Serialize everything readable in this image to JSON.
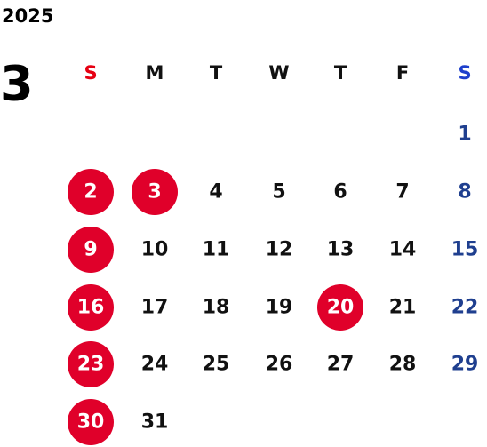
{
  "year": "2025",
  "month": "3",
  "weekdays": [
    "S",
    "M",
    "T",
    "W",
    "T",
    "F",
    "S"
  ],
  "weeks": [
    [
      null,
      null,
      null,
      null,
      null,
      null,
      1
    ],
    [
      2,
      3,
      4,
      5,
      6,
      7,
      8
    ],
    [
      9,
      10,
      11,
      12,
      13,
      14,
      15
    ],
    [
      16,
      17,
      18,
      19,
      20,
      21,
      22
    ],
    [
      23,
      24,
      25,
      26,
      27,
      28,
      29
    ],
    [
      30,
      31,
      null,
      null,
      null,
      null,
      null
    ]
  ],
  "circled": [
    2,
    3,
    9,
    16,
    20,
    23,
    30
  ],
  "circle_color": "#e0002a",
  "sunday_color": "#e60012",
  "saturday_header_color": "#1d3fcc",
  "saturday_color": "#1f3f8f"
}
